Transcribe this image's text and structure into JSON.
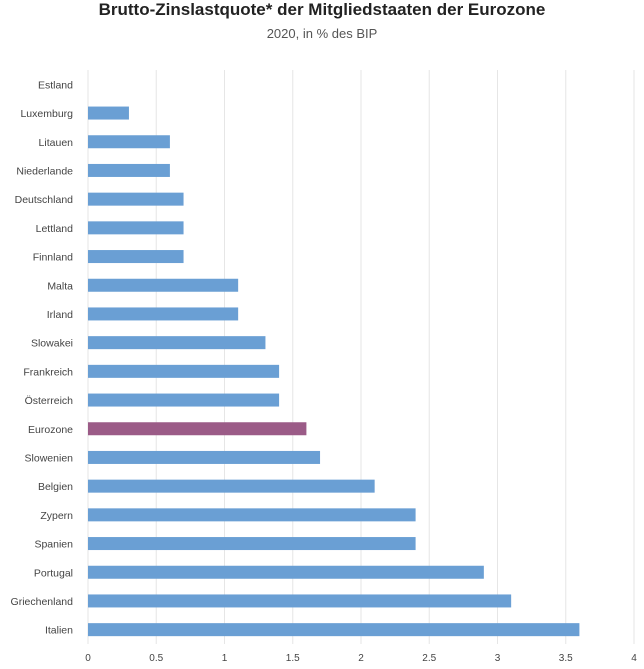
{
  "chart_data": {
    "type": "bar",
    "orientation": "horizontal",
    "title": "Brutto-Zinslastquote* der Mitgliedstaaten der Eurozone",
    "subtitle": "2020, in % des BIP",
    "xlabel": "",
    "ylabel": "",
    "xlim": [
      0,
      4
    ],
    "x_ticks": [
      "0",
      "0.5",
      "1",
      "1.5",
      "2",
      "2.5",
      "3",
      "3.5",
      "4"
    ],
    "grid": true,
    "legend": "none",
    "categories": [
      "Estland",
      "Luxemburg",
      "Litauen",
      "Niederlande",
      "Deutschland",
      "Lettland",
      "Finnland",
      "Malta",
      "Irland",
      "Slowakei",
      "Frankreich",
      "Österreich",
      "Eurozone",
      "Slowenien",
      "Belgien",
      "Zypern",
      "Spanien",
      "Portugal",
      "Griechenland",
      "Italien"
    ],
    "values": [
      0.0,
      0.3,
      0.6,
      0.6,
      0.7,
      0.7,
      0.7,
      1.1,
      1.1,
      1.3,
      1.4,
      1.4,
      1.6,
      1.7,
      2.1,
      2.4,
      2.4,
      2.9,
      3.1,
      3.6
    ],
    "colors": {
      "default": "#6a9fd4",
      "highlight": "#9b5b87",
      "grid": "#e6e6e6"
    },
    "highlight_category": "Eurozone"
  }
}
